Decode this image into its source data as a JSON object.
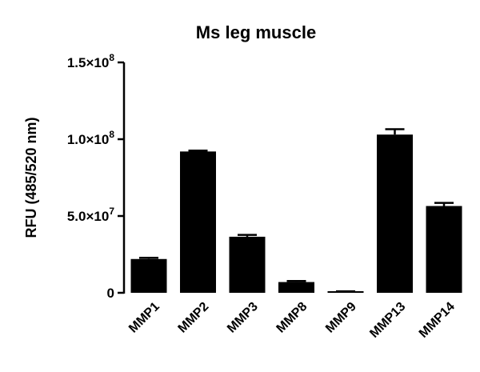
{
  "chart_data": {
    "type": "bar",
    "title": "Ms leg muscle",
    "ylabel": "RFU (485/520 nm)",
    "xlabel": "",
    "categories": [
      "MMP1",
      "MMP2",
      "MMP3",
      "MMP8",
      "MMP9",
      "MMP13",
      "MMP14"
    ],
    "values": [
      22000000,
      92000000,
      36500000,
      7000000,
      500000,
      103000000,
      56500000
    ],
    "error": [
      800000,
      600000,
      1200000,
      700000,
      500000,
      3500000,
      2000000
    ],
    "ylim": [
      0,
      150000000
    ],
    "yticks": [
      {
        "value": 0,
        "mantissa": "0",
        "exponent": ""
      },
      {
        "value": 50000000,
        "mantissa": "5.0×10",
        "exponent": "7"
      },
      {
        "value": 100000000,
        "mantissa": "1.0×10",
        "exponent": "8"
      },
      {
        "value": 150000000,
        "mantissa": "1.5×10",
        "exponent": "8"
      }
    ],
    "bar_color": "#000000",
    "grid": false,
    "legend": "none"
  }
}
